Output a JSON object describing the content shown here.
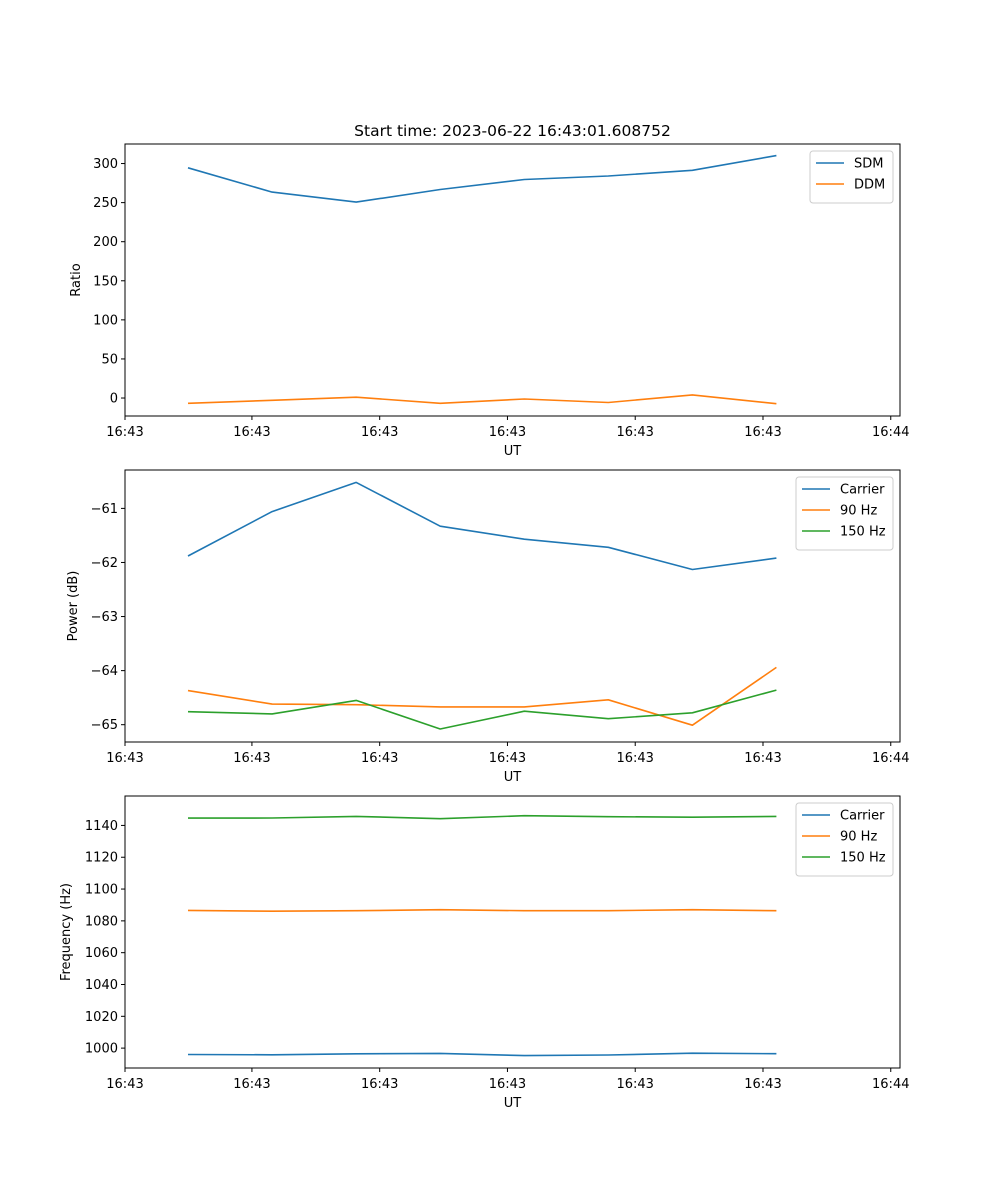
{
  "figure_title": "Start time: 2023-06-22 16:43:01.608752",
  "x_tick_labels": [
    "16:43",
    "16:43",
    "16:43",
    "16:43",
    "16:43",
    "16:43",
    "16:44"
  ],
  "colors": {
    "blue": "#1f77b4",
    "orange": "#ff7f0e",
    "green": "#2ca02c"
  },
  "chart_data": [
    {
      "type": "line",
      "title": "Start time: 2023-06-22 16:43:01.608752",
      "xlabel": "UT",
      "ylabel": "Ratio",
      "x": [
        1,
        2,
        3,
        4,
        5,
        6,
        7,
        8
      ],
      "xlim": [
        0.25,
        9.47
      ],
      "ylim": [
        -23,
        325
      ],
      "yticks": [
        0,
        50,
        100,
        150,
        200,
        250,
        300
      ],
      "legend": "upper right",
      "grid": false,
      "series": [
        {
          "name": "SDM",
          "color": "#1f77b4",
          "values": [
            294.5,
            263.5,
            250.7,
            266.8,
            279.6,
            284.0,
            291.4,
            310.1
          ]
        },
        {
          "name": "DDM",
          "color": "#ff7f0e",
          "values": [
            -6.8,
            -2.9,
            1.0,
            -6.8,
            -1.3,
            -5.7,
            4.0,
            -7.3
          ]
        }
      ]
    },
    {
      "type": "line",
      "xlabel": "UT",
      "ylabel": "Power (dB)",
      "x": [
        1,
        2,
        3,
        4,
        5,
        6,
        7,
        8
      ],
      "xlim": [
        0.25,
        9.47
      ],
      "ylim": [
        -65.32,
        -60.29
      ],
      "yticks": [
        -65,
        -64,
        -63,
        -62,
        -61
      ],
      "yticklabels": [
        "−65",
        "−64",
        "−63",
        "−62",
        "−61"
      ],
      "legend": "upper right",
      "grid": false,
      "series": [
        {
          "name": "Carrier",
          "color": "#1f77b4",
          "values": [
            -61.88,
            -61.06,
            -60.52,
            -61.33,
            -61.57,
            -61.72,
            -62.13,
            -61.92
          ]
        },
        {
          "name": "90 Hz",
          "color": "#ff7f0e",
          "values": [
            -64.37,
            -64.62,
            -64.63,
            -64.67,
            -64.67,
            -64.54,
            -65.01,
            -63.94
          ]
        },
        {
          "name": "150 Hz",
          "color": "#2ca02c",
          "values": [
            -64.76,
            -64.8,
            -64.55,
            -65.08,
            -64.75,
            -64.89,
            -64.78,
            -64.36
          ]
        }
      ]
    },
    {
      "type": "line",
      "xlabel": "UT",
      "ylabel": "Frequency (Hz)",
      "x": [
        1,
        2,
        3,
        4,
        5,
        6,
        7,
        8
      ],
      "xlim": [
        0.25,
        9.47
      ],
      "ylim": [
        987.5,
        1158.5
      ],
      "yticks": [
        1000,
        1020,
        1040,
        1060,
        1080,
        1100,
        1120,
        1140
      ],
      "legend": "upper right",
      "grid": false,
      "series": [
        {
          "name": "Carrier",
          "color": "#1f77b4",
          "values": [
            996.0,
            995.8,
            996.4,
            996.7,
            995.3,
            995.7,
            996.8,
            996.5
          ]
        },
        {
          "name": "90 Hz",
          "color": "#ff7f0e",
          "values": [
            1086.6,
            1086.1,
            1086.4,
            1087.0,
            1086.4,
            1086.4,
            1087.0,
            1086.4
          ]
        },
        {
          "name": "150 Hz",
          "color": "#2ca02c",
          "values": [
            1144.6,
            1144.7,
            1145.7,
            1144.2,
            1146.1,
            1145.5,
            1145.2,
            1145.7
          ]
        }
      ]
    }
  ]
}
